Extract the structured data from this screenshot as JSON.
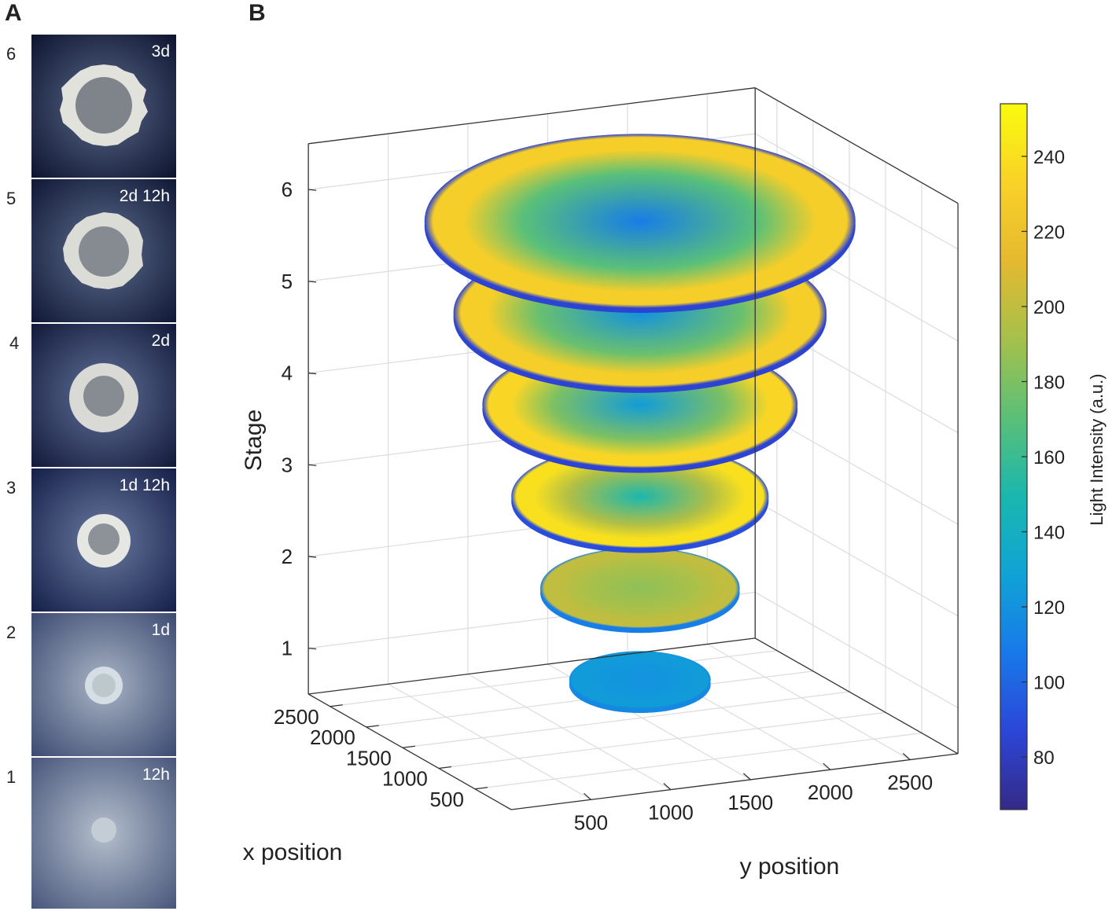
{
  "panel_labels": {
    "a": "A",
    "b": "B"
  },
  "photos": [
    {
      "stage": "6",
      "time": "3d"
    },
    {
      "stage": "5",
      "time": "2d 12h"
    },
    {
      "stage": "4",
      "time": "2d"
    },
    {
      "stage": "3",
      "time": "1d 12h"
    },
    {
      "stage": "2",
      "time": "1d"
    },
    {
      "stage": "1",
      "time": "12h"
    }
  ],
  "colors": {
    "parula": [
      "#352a87",
      "#2c46d8",
      "#1879e9",
      "#10a3d6",
      "#1ab7ae",
      "#5bc077",
      "#a6c04b",
      "#e5b930",
      "#f9d228",
      "#f9fb0e"
    ],
    "axis": "#333333",
    "grid": "#dcdcdc"
  },
  "chart_data": {
    "type": "3d-stacked-heatmap",
    "zlabel": "Stage",
    "xlabel": "x position",
    "ylabel": "y position",
    "z_ticks": [
      "1",
      "2",
      "3",
      "4",
      "5",
      "6"
    ],
    "x_ticks": [
      "500",
      "1000",
      "1500",
      "2000",
      "2500"
    ],
    "y_ticks": [
      "500",
      "1000",
      "1500",
      "2000",
      "2500"
    ],
    "xlim": [
      0,
      2800
    ],
    "ylim": [
      0,
      2800
    ],
    "zlim": [
      0.5,
      6.5
    ],
    "colorbar": {
      "label": "Light Intensity (a.u.)",
      "ticks": [
        "80",
        "100",
        "120",
        "140",
        "160",
        "180",
        "200",
        "220",
        "240"
      ],
      "tick_values": [
        80,
        100,
        120,
        140,
        160,
        180,
        200,
        220,
        240
      ],
      "range": [
        66,
        254
      ]
    },
    "colonies": [
      {
        "stage": 1,
        "center_intensity": 120,
        "ring_intensity": 125,
        "edge_intensity": 115
      },
      {
        "stage": 2,
        "center_intensity": 185,
        "ring_intensity": 200,
        "edge_intensity": 110
      },
      {
        "stage": 3,
        "center_intensity": 150,
        "ring_intensity": 240,
        "edge_intensity": 90
      },
      {
        "stage": 4,
        "center_intensity": 125,
        "ring_intensity": 235,
        "edge_intensity": 85
      },
      {
        "stage": 5,
        "center_intensity": 120,
        "ring_intensity": 230,
        "edge_intensity": 85
      },
      {
        "stage": 6,
        "center_intensity": 110,
        "ring_intensity": 230,
        "edge_intensity": 85
      }
    ]
  }
}
